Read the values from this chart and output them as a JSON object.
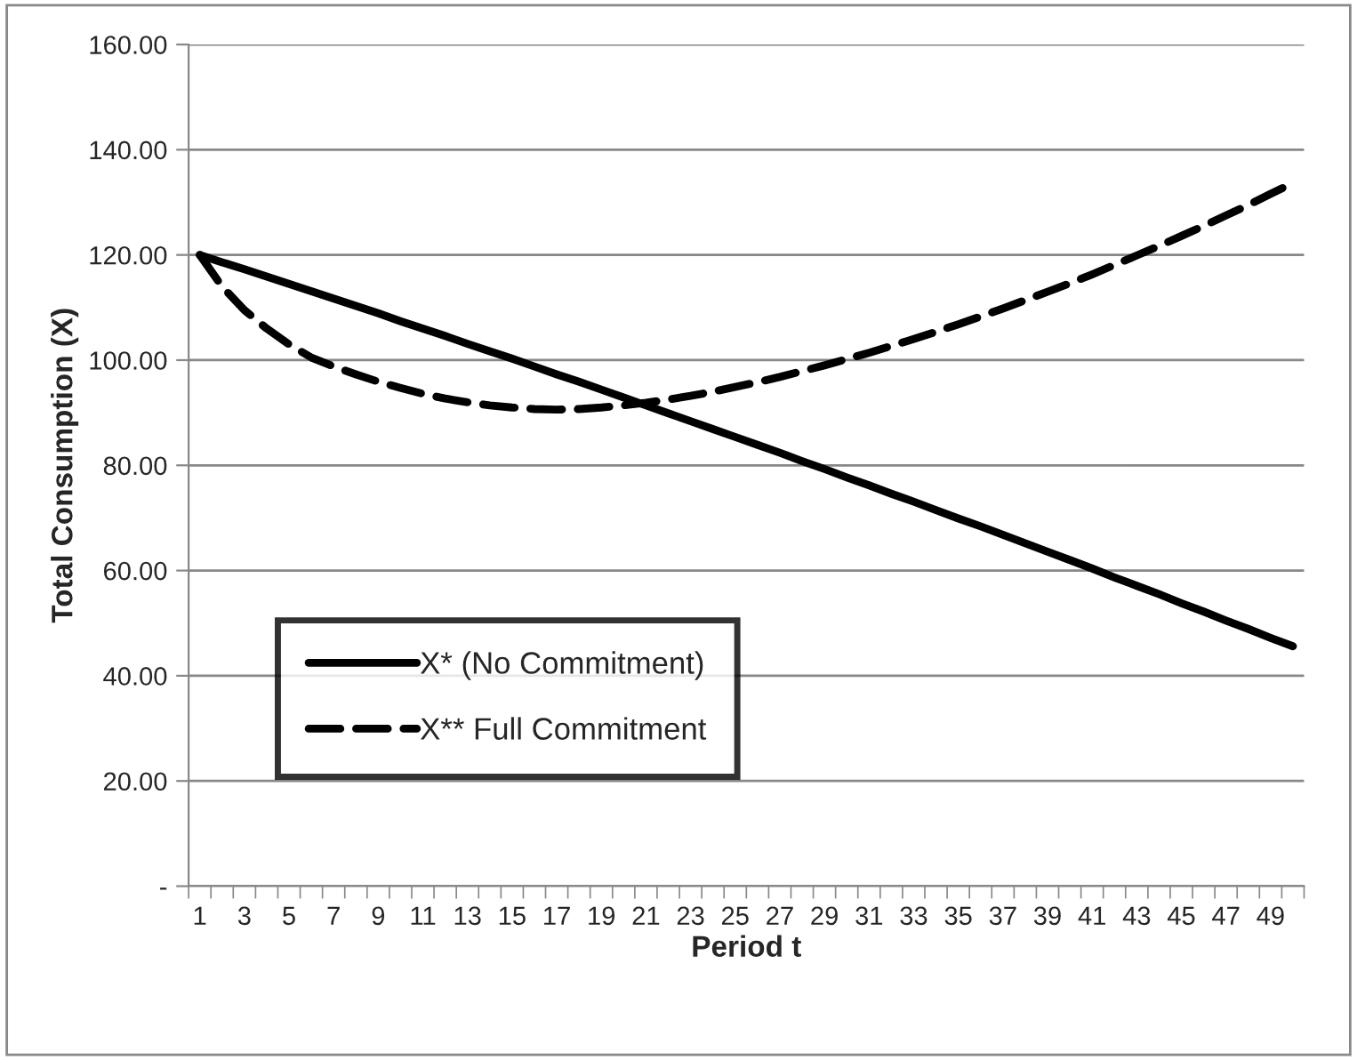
{
  "chart_data": {
    "type": "line",
    "xlabel": "Period t",
    "ylabel": "Total Consumption (X)",
    "categories": [
      "1",
      null,
      "3",
      null,
      "5",
      null,
      "7",
      null,
      "9",
      null,
      "11",
      null,
      "13",
      null,
      "15",
      null,
      "17",
      null,
      "19",
      null,
      "21",
      null,
      "23",
      null,
      "25",
      null,
      "27",
      null,
      "29",
      null,
      "31",
      null,
      "33",
      null,
      "35",
      null,
      "37",
      null,
      "39",
      null,
      "41",
      null,
      "43",
      null,
      "45",
      null,
      "47",
      null,
      "49",
      null
    ],
    "series": [
      {
        "name": "X* (No Commitment)",
        "color": "#000000",
        "line_style": "solid",
        "values": [
          120,
          118.6,
          117.3,
          115.9,
          114.5,
          113.1,
          111.7,
          110.3,
          108.9,
          107.4,
          106.0,
          104.6,
          103.1,
          101.7,
          100.3,
          98.8,
          97.3,
          95.9,
          94.4,
          92.9,
          91.4,
          89.9,
          88.4,
          86.9,
          85.4,
          83.9,
          82.4,
          80.8,
          79.3,
          77.7,
          76.2,
          74.6,
          73.1,
          71.5,
          69.9,
          68.4,
          66.8,
          65.2,
          63.6,
          62.0,
          60.4,
          58.7,
          57.1,
          55.5,
          53.8,
          52.2,
          50.5,
          48.9,
          47.2,
          45.6
        ]
      },
      {
        "name": "X** Full Commitment",
        "color": "#000000",
        "line_style": "dashed",
        "values": [
          120,
          114,
          109.5,
          106,
          103,
          100.5,
          98.8,
          97.3,
          95.9,
          94.7,
          93.6,
          92.7,
          92,
          91.4,
          91,
          90.7,
          90.6,
          90.7,
          91,
          91.4,
          91.9,
          92.5,
          93.2,
          94,
          94.9,
          95.8,
          96.8,
          97.9,
          99,
          100.2,
          101.4,
          102.7,
          104,
          105.4,
          106.8,
          108.3,
          109.8,
          111.4,
          113,
          114.6,
          116.3,
          118.1,
          119.9,
          121.7,
          123.6,
          125.5,
          127.5,
          129.5,
          131.6,
          133.7
        ]
      }
    ],
    "ylim": [
      0,
      160
    ],
    "yticks": [
      {
        "value": 0,
        "label": "-"
      },
      {
        "value": 20,
        "label": "20.00"
      },
      {
        "value": 40,
        "label": "40.00"
      },
      {
        "value": 60,
        "label": "60.00"
      },
      {
        "value": 80,
        "label": "80.00"
      },
      {
        "value": 100,
        "label": "100.00"
      },
      {
        "value": 120,
        "label": "120.00"
      },
      {
        "value": 140,
        "label": "140.00"
      },
      {
        "value": 160,
        "label": "160.00"
      }
    ],
    "grid": "y",
    "legend": "bottom left",
    "marker": "none"
  }
}
